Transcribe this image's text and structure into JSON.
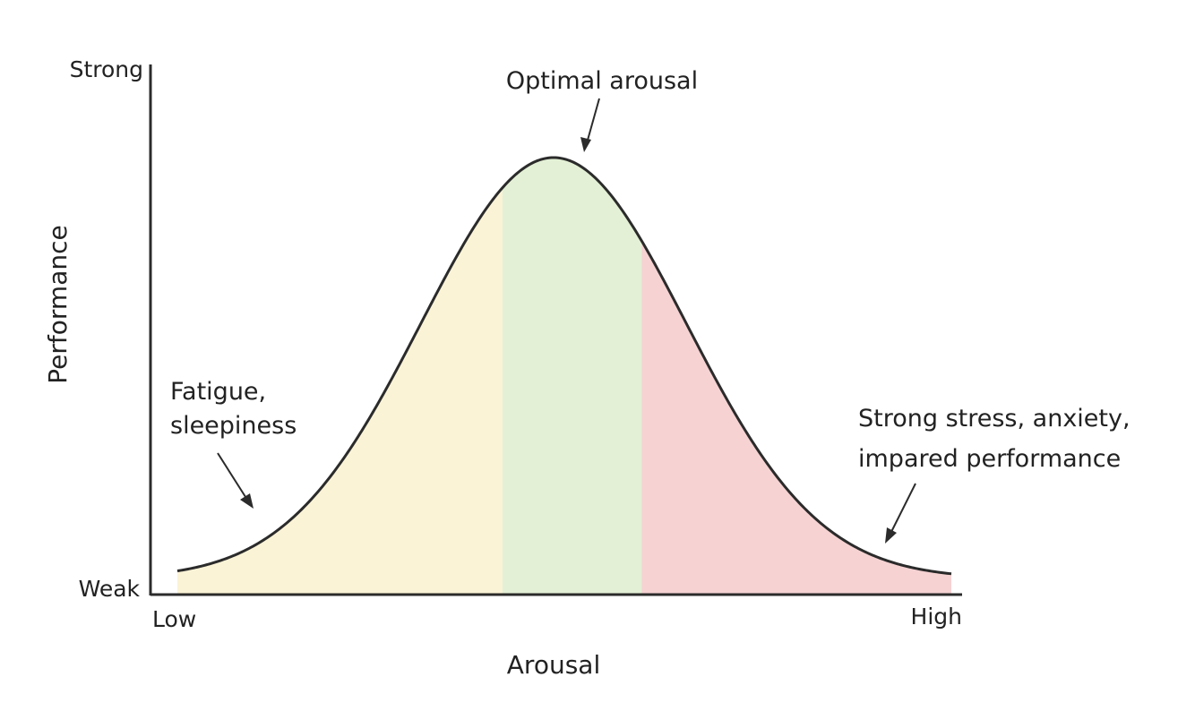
{
  "chart_data": {
    "type": "area",
    "x_axis": {
      "title": "Arousal",
      "tick_labels": [
        "Low",
        "High"
      ]
    },
    "y_axis": {
      "title": "Performance",
      "tick_labels": [
        "Weak",
        "Strong"
      ]
    },
    "curve_shape": "inverted-U (bell curve)",
    "grid": false,
    "legend": "none",
    "regions": [
      {
        "from": 0.0,
        "to": 0.42,
        "color": "#fbf3d6"
      },
      {
        "from": 0.42,
        "to": 0.6,
        "color": "#e3f0d5"
      },
      {
        "from": 0.6,
        "to": 1.0,
        "color": "#f6d2d3"
      }
    ],
    "annotations": [
      {
        "lines": [
          "Optimal arousal"
        ]
      },
      {
        "lines": [
          "Fatigue,",
          "sleepiness"
        ]
      },
      {
        "lines": [
          "Strong stress, anxiety,",
          "impared performance"
        ]
      }
    ]
  }
}
